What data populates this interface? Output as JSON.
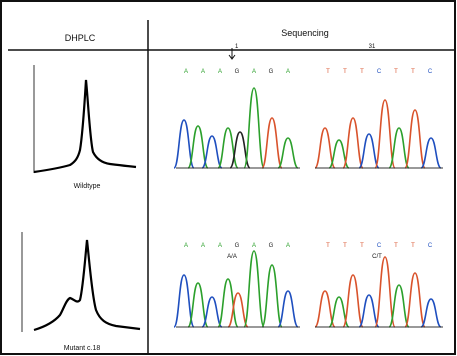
{
  "figure": {
    "left_header": "DHPLC",
    "right_header": "Sequencing",
    "top_caption": "Wildtype",
    "bottom_caption": "Mutant c.18",
    "marker_label": "1",
    "heteroduplex_labels": [
      "A/A",
      "C/T"
    ],
    "colors": {
      "A": "#2ca02c",
      "C": "#1f4fbf",
      "G": "#222222",
      "T": "#d9532c"
    }
  },
  "sequences": {
    "top_left": [
      "A",
      "A",
      "A",
      "G",
      "A",
      "G",
      "A"
    ],
    "top_right": [
      "T",
      "T",
      "T",
      "C",
      "T",
      "T",
      "C"
    ],
    "bottom_left": [
      "A",
      "A",
      "A",
      "G",
      "A",
      "G",
      "A"
    ],
    "bottom_right": [
      "T",
      "T",
      "T",
      "C",
      "T",
      "T",
      "C"
    ]
  }
}
